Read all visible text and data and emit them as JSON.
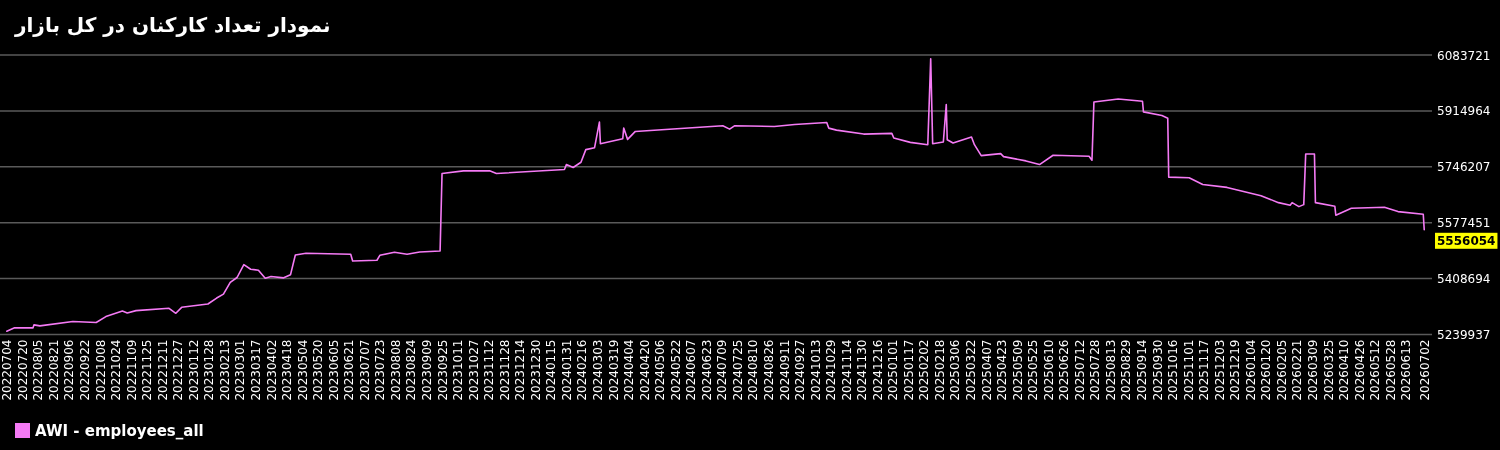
{
  "chart_data": {
    "type": "line",
    "title": "نمودار تعداد کارکنان در کل بازار",
    "xlim": [
      "2022-06-27",
      "2026-07-10"
    ],
    "ylim": [
      5239937,
      6083721
    ],
    "yticks": [
      5239937,
      5408694,
      5577451,
      5746207,
      5914964,
      6083721
    ],
    "xticks": [
      {
        "value": "2022-07-04",
        "label": "20220704"
      },
      {
        "value": "2022-07-20",
        "label": "20220720"
      },
      {
        "value": "2022-08-05",
        "label": "20220805"
      },
      {
        "value": "2022-08-21",
        "label": "20220821"
      },
      {
        "value": "2022-09-06",
        "label": "20220906"
      },
      {
        "value": "2022-09-22",
        "label": "20220922"
      },
      {
        "value": "2022-10-08",
        "label": "20221008"
      },
      {
        "value": "2022-10-24",
        "label": "20221024"
      },
      {
        "value": "2022-11-09",
        "label": "20221109"
      },
      {
        "value": "2022-11-25",
        "label": "20221125"
      },
      {
        "value": "2022-12-11",
        "label": "20221211"
      },
      {
        "value": "2022-12-27",
        "label": "20221227"
      },
      {
        "value": "2023-01-12",
        "label": "20230112"
      },
      {
        "value": "2023-01-28",
        "label": "20230128"
      },
      {
        "value": "2023-02-13",
        "label": "20230213"
      },
      {
        "value": "2023-03-01",
        "label": "20230301"
      },
      {
        "value": "2023-03-17",
        "label": "20230317"
      },
      {
        "value": "2023-04-02",
        "label": "20230402"
      },
      {
        "value": "2023-04-18",
        "label": "20230418"
      },
      {
        "value": "2023-05-04",
        "label": "20230504"
      },
      {
        "value": "2023-05-20",
        "label": "20230520"
      },
      {
        "value": "2023-06-05",
        "label": "20230605"
      },
      {
        "value": "2023-06-21",
        "label": "20230621"
      },
      {
        "value": "2023-07-07",
        "label": "20230707"
      },
      {
        "value": "2023-07-23",
        "label": "20230723"
      },
      {
        "value": "2023-08-08",
        "label": "20230808"
      },
      {
        "value": "2023-08-24",
        "label": "20230824"
      },
      {
        "value": "2023-09-09",
        "label": "20230909"
      },
      {
        "value": "2023-09-25",
        "label": "20230925"
      },
      {
        "value": "2023-10-11",
        "label": "20231011"
      },
      {
        "value": "2023-10-27",
        "label": "20231027"
      },
      {
        "value": "2023-11-12",
        "label": "20231112"
      },
      {
        "value": "2023-11-28",
        "label": "20231128"
      },
      {
        "value": "2023-12-14",
        "label": "20231214"
      },
      {
        "value": "2023-12-30",
        "label": "20231230"
      },
      {
        "value": "2024-01-15",
        "label": "20240115"
      },
      {
        "value": "2024-01-31",
        "label": "20240131"
      },
      {
        "value": "2024-02-16",
        "label": "20240216"
      },
      {
        "value": "2024-03-03",
        "label": "20240303"
      },
      {
        "value": "2024-03-19",
        "label": "20240319"
      },
      {
        "value": "2024-04-04",
        "label": "20240404"
      },
      {
        "value": "2024-04-20",
        "label": "20240420"
      },
      {
        "value": "2024-05-06",
        "label": "20240506"
      },
      {
        "value": "2024-05-22",
        "label": "20240522"
      },
      {
        "value": "2024-06-07",
        "label": "20240607"
      },
      {
        "value": "2024-06-23",
        "label": "20240623"
      },
      {
        "value": "2024-07-09",
        "label": "20240709"
      },
      {
        "value": "2024-07-25",
        "label": "20240725"
      },
      {
        "value": "2024-08-10",
        "label": "20240810"
      },
      {
        "value": "2024-08-26",
        "label": "20240826"
      },
      {
        "value": "2024-09-11",
        "label": "20240911"
      },
      {
        "value": "2024-09-27",
        "label": "20240927"
      },
      {
        "value": "2024-10-13",
        "label": "20241013"
      },
      {
        "value": "2024-10-29",
        "label": "20241029"
      },
      {
        "value": "2024-11-14",
        "label": "20241114"
      },
      {
        "value": "2024-11-30",
        "label": "20241130"
      },
      {
        "value": "2024-12-16",
        "label": "20241216"
      },
      {
        "value": "2025-01-01",
        "label": "20250101"
      },
      {
        "value": "2025-01-17",
        "label": "20250117"
      },
      {
        "value": "2025-02-02",
        "label": "20250202"
      },
      {
        "value": "2025-02-18",
        "label": "20250218"
      },
      {
        "value": "2025-03-06",
        "label": "20250306"
      },
      {
        "value": "2025-03-22",
        "label": "20250322"
      },
      {
        "value": "2025-04-07",
        "label": "20250407"
      },
      {
        "value": "2025-04-23",
        "label": "20250423"
      },
      {
        "value": "2025-05-09",
        "label": "20250509"
      },
      {
        "value": "2025-05-25",
        "label": "20250525"
      },
      {
        "value": "2025-06-10",
        "label": "20250610"
      },
      {
        "value": "2025-06-26",
        "label": "20250626"
      },
      {
        "value": "2025-07-12",
        "label": "20250712"
      },
      {
        "value": "2025-07-28",
        "label": "20250728"
      },
      {
        "value": "2025-08-13",
        "label": "20250813"
      },
      {
        "value": "2025-08-29",
        "label": "20250829"
      },
      {
        "value": "2025-09-14",
        "label": "20250914"
      },
      {
        "value": "2025-09-30",
        "label": "20250930"
      },
      {
        "value": "2025-10-16",
        "label": "20251016"
      },
      {
        "value": "2025-11-01",
        "label": "20251101"
      },
      {
        "value": "2025-11-17",
        "label": "20251117"
      },
      {
        "value": "2025-12-03",
        "label": "20251203"
      },
      {
        "value": "2025-12-19",
        "label": "20251219"
      },
      {
        "value": "2026-01-04",
        "label": "20260104"
      },
      {
        "value": "2026-01-20",
        "label": "20260120"
      },
      {
        "value": "2026-02-05",
        "label": "20260205"
      },
      {
        "value": "2026-02-21",
        "label": "20260221"
      },
      {
        "value": "2026-03-09",
        "label": "20260309"
      },
      {
        "value": "2026-03-25",
        "label": "20260325"
      },
      {
        "value": "2026-04-10",
        "label": "20260410"
      },
      {
        "value": "2026-04-26",
        "label": "20260426"
      },
      {
        "value": "2026-05-12",
        "label": "20260512"
      },
      {
        "value": "2026-05-28",
        "label": "20260528"
      },
      {
        "value": "2026-06-13",
        "label": "20260613"
      },
      {
        "value": "2026-07-02",
        "label": "20260702"
      }
    ],
    "x": [
      "2022-07-04",
      "2022-07-12",
      "2022-07-31",
      "2022-08-01",
      "2022-08-07",
      "2022-09-10",
      "2022-10-04",
      "2022-10-14",
      "2022-10-31",
      "2022-11-05",
      "2022-11-14",
      "2022-12-18",
      "2022-12-25",
      "2022-12-31",
      "2023-01-27",
      "2023-02-05",
      "2023-02-12",
      "2023-02-19",
      "2023-02-26",
      "2023-03-05",
      "2023-03-12",
      "2023-03-20",
      "2023-03-27",
      "2023-04-02",
      "2023-04-15",
      "2023-04-22",
      "2023-04-27",
      "2023-05-08",
      "2023-06-23",
      "2023-06-25",
      "2023-07-20",
      "2023-07-23",
      "2023-08-07",
      "2023-08-20",
      "2023-09-02",
      "2023-09-23",
      "2023-09-25",
      "2023-10-17",
      "2023-11-13",
      "2023-11-20",
      "2024-01-29",
      "2024-01-31",
      "2024-02-07",
      "2024-02-15",
      "2024-02-20",
      "2024-02-29",
      "2024-03-05",
      "2024-03-06",
      "2024-03-29",
      "2024-03-30",
      "2024-04-03",
      "2024-04-11",
      "2024-05-12",
      "2024-07-10",
      "2024-07-17",
      "2024-07-22",
      "2024-09-01",
      "2024-09-22",
      "2024-10-25",
      "2024-10-27",
      "2024-11-04",
      "2024-12-02",
      "2024-12-31",
      "2025-01-02",
      "2025-01-19",
      "2025-02-06",
      "2025-02-09",
      "2025-02-11",
      "2025-02-22",
      "2025-02-25",
      "2025-02-26",
      "2025-03-04",
      "2025-03-23",
      "2025-03-26",
      "2025-04-02",
      "2025-04-22",
      "2025-04-25",
      "2025-05-18",
      "2025-06-01",
      "2025-06-15",
      "2025-07-22",
      "2025-07-25",
      "2025-07-27",
      "2025-08-21",
      "2025-09-15",
      "2025-09-16",
      "2025-10-05",
      "2025-10-11",
      "2025-10-12",
      "2025-11-02",
      "2025-11-16",
      "2025-12-11",
      "2026-01-15",
      "2026-02-02",
      "2026-02-14",
      "2026-02-16",
      "2026-02-23",
      "2026-02-28",
      "2026-03-02",
      "2026-03-11",
      "2026-03-12",
      "2026-04-01",
      "2026-04-02",
      "2026-04-18",
      "2026-05-22",
      "2026-06-05",
      "2026-07-01",
      "2026-07-02"
    ],
    "series": [
      {
        "name": "AWI - employees_all",
        "color": "#f57af5",
        "values": [
          5250000,
          5260000,
          5260000,
          5269000,
          5266000,
          5279000,
          5276000,
          5294000,
          5311000,
          5305000,
          5312000,
          5319000,
          5304000,
          5322000,
          5332000,
          5350000,
          5362000,
          5397000,
          5412000,
          5451000,
          5437000,
          5434000,
          5410000,
          5415000,
          5411000,
          5420000,
          5480000,
          5485000,
          5482000,
          5462000,
          5464000,
          5479000,
          5488000,
          5482000,
          5489000,
          5492000,
          5726000,
          5734000,
          5734000,
          5726000,
          5738000,
          5753000,
          5744000,
          5760000,
          5798000,
          5804000,
          5881000,
          5816000,
          5831000,
          5863000,
          5829000,
          5853000,
          5859000,
          5870000,
          5860000,
          5870000,
          5868000,
          5874000,
          5880000,
          5863000,
          5857000,
          5845000,
          5847000,
          5833000,
          5820000,
          5813000,
          6072000,
          5816000,
          5821000,
          5934000,
          5828000,
          5818000,
          5836000,
          5813000,
          5780000,
          5786000,
          5777000,
          5764000,
          5753000,
          5781000,
          5778000,
          5766000,
          5942000,
          5951000,
          5944000,
          5912000,
          5901000,
          5893000,
          5715000,
          5713000,
          5693000,
          5684000,
          5659000,
          5638000,
          5630000,
          5638000,
          5626000,
          5632000,
          5785000,
          5785000,
          5638000,
          5627000,
          5600000,
          5621000,
          5624000,
          5611000,
          5603000,
          5556054
        ]
      }
    ],
    "annotations": [
      {
        "text": "5556054",
        "x": "2026-07-02",
        "y": 5556054
      }
    ],
    "grid": "y",
    "legend": "bottom left"
  }
}
